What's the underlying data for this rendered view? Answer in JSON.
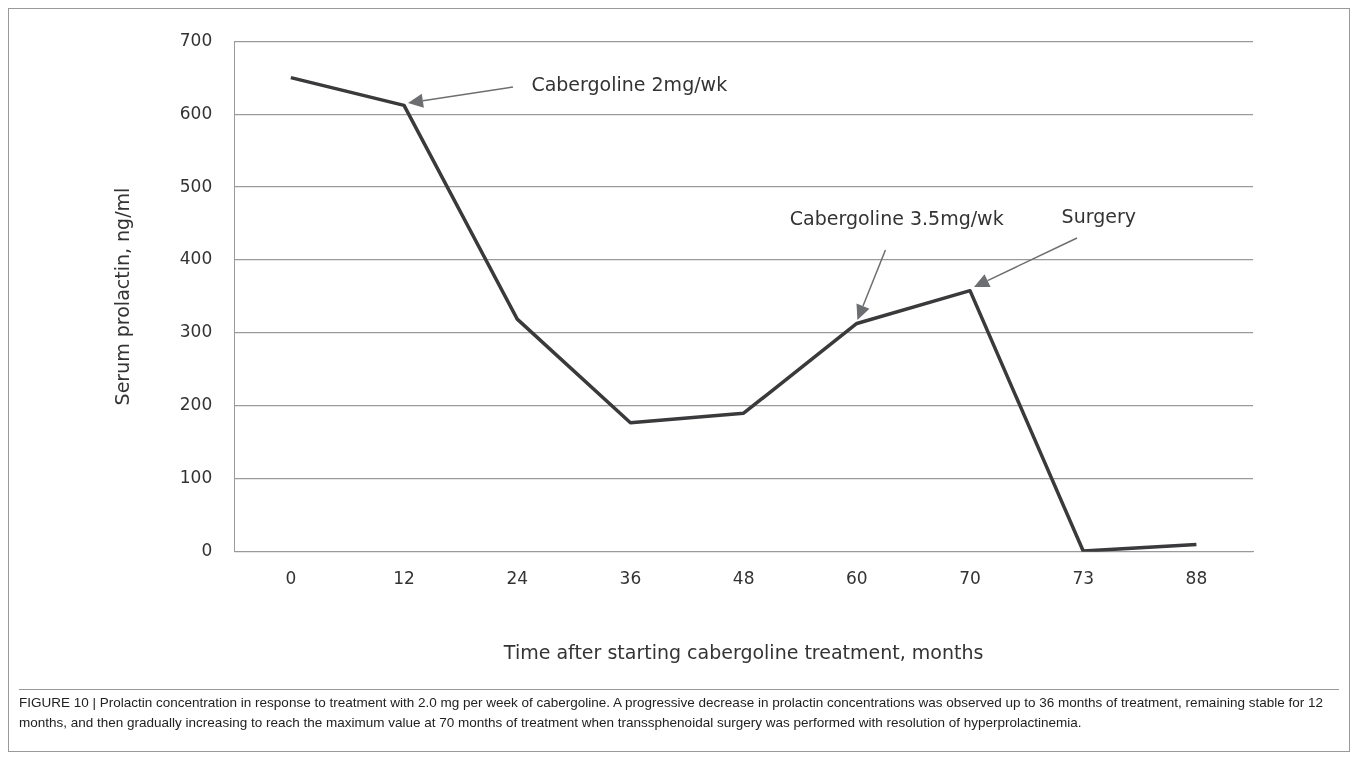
{
  "chart_data": {
    "type": "line",
    "xlabel": "Time after starting cabergoline treatment, months",
    "ylabel": "Serum prolactin, ng/ml",
    "categories": [
      "0",
      "12",
      "24",
      "36",
      "48",
      "60",
      "70",
      "73",
      "88"
    ],
    "series": [
      {
        "color": "#3a3a3c",
        "values": [
          650,
          612,
          319,
          177,
          190,
          313,
          358,
          1,
          10
        ]
      }
    ],
    "ylim": [
      0,
      700
    ],
    "yticks": [
      0,
      100,
      200,
      300,
      400,
      500,
      600,
      700
    ],
    "grid": "y",
    "legend": false,
    "marker": "none",
    "line_style": "solid",
    "annotations": [
      "Cabergoline 2mg/wk",
      "Cabergoline 3.5mg/wk",
      "Surgery",
      "FIGURE 10 | Prolactin concentration in response to treatment with 2.0 mg per week of cabergoline. A progressive decrease in prolactin concentrations was observed up to 36 months of treatment, remaining stable for 12 months, and then gradually increasing to reach the maximum value at 70 months of treatment when transsphenoidal surgery was performed with resolution of hyperprolactinemia."
    ]
  }
}
